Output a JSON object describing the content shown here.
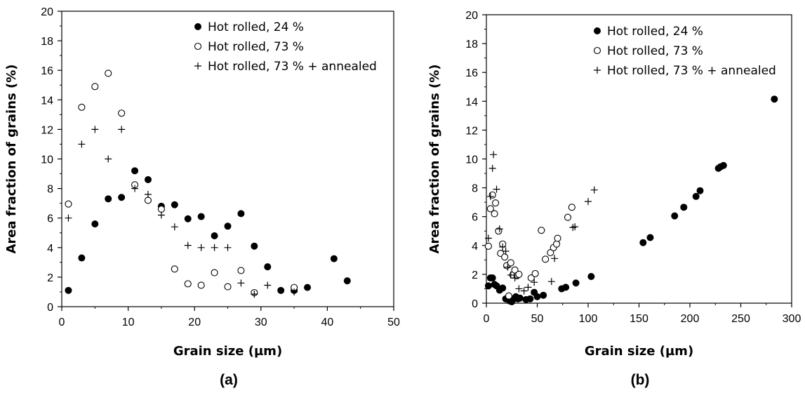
{
  "chart_data": [
    {
      "type": "scatter",
      "panel_label": "(a)",
      "xlabel": "Grain size (µm)",
      "ylabel": "Area fraction of grains  (%)",
      "xlim": [
        0,
        50
      ],
      "ylim": [
        0,
        20
      ],
      "x_ticks": [
        0,
        10,
        20,
        30,
        40,
        50
      ],
      "y_ticks": [
        0,
        2,
        4,
        6,
        8,
        10,
        12,
        14,
        16,
        18,
        20
      ],
      "grid": false,
      "legend_position": "top-right",
      "series": [
        {
          "name": "Hot rolled, 24 %",
          "marker": "filled-circle",
          "x": [
            1,
            3,
            5,
            7,
            9,
            11,
            13,
            15,
            17,
            19,
            21,
            23,
            25,
            27,
            29,
            31,
            33,
            35,
            37,
            41,
            43
          ],
          "y": [
            1.1,
            3.3,
            5.6,
            7.3,
            7.4,
            9.2,
            8.6,
            6.8,
            6.9,
            5.95,
            6.1,
            4.8,
            5.45,
            6.3,
            4.1,
            2.7,
            1.1,
            1.1,
            1.3,
            3.25,
            1.75
          ]
        },
        {
          "name": "Hot rolled, 73 %",
          "marker": "open-circle",
          "x": [
            1,
            3,
            5,
            7,
            9,
            11,
            13,
            15,
            17,
            19,
            21,
            23,
            25,
            27,
            29,
            35
          ],
          "y": [
            6.95,
            13.5,
            14.9,
            15.8,
            13.1,
            8.25,
            7.2,
            6.6,
            2.55,
            1.55,
            1.45,
            2.3,
            1.35,
            2.45,
            0.95,
            1.3
          ]
        },
        {
          "name": "Hot rolled, 73 % + annealed",
          "marker": "plus",
          "x": [
            1,
            3,
            5,
            7,
            9,
            11,
            13,
            15,
            17,
            19,
            21,
            23,
            25,
            27,
            29,
            31,
            35
          ],
          "y": [
            6.0,
            11.0,
            12.0,
            10.0,
            12.0,
            8.0,
            7.6,
            6.2,
            5.4,
            4.15,
            4.0,
            4.0,
            4.0,
            1.6,
            0.85,
            1.45,
            1.0
          ]
        }
      ]
    },
    {
      "type": "scatter",
      "panel_label": "(b)",
      "xlabel": "Grain size (µm)",
      "ylabel": "Area fraction of grains (%)",
      "xlim": [
        0,
        300
      ],
      "ylim": [
        0,
        20
      ],
      "x_ticks": [
        0,
        50,
        100,
        150,
        200,
        250,
        300
      ],
      "y_ticks": [
        0,
        2,
        4,
        6,
        8,
        10,
        12,
        14,
        16,
        18,
        20
      ],
      "grid": false,
      "legend_position": "top-right",
      "series": [
        {
          "name": "Hot rolled, 24 %",
          "marker": "filled-circle",
          "x": [
            2,
            4,
            6,
            8,
            10,
            13,
            16,
            19,
            21,
            23,
            25,
            27,
            29,
            31,
            33,
            39,
            43,
            47,
            50,
            56,
            74,
            78,
            88,
            103,
            154,
            161,
            185,
            194,
            206,
            210,
            228,
            230,
            233,
            283
          ],
          "y": [
            1.2,
            1.75,
            1.75,
            1.3,
            1.2,
            0.9,
            1.05,
            0.3,
            0.3,
            0.15,
            0.1,
            0.3,
            0.45,
            0.3,
            0.35,
            0.25,
            0.3,
            0.75,
            0.45,
            0.55,
            1.0,
            1.1,
            1.4,
            1.85,
            4.2,
            4.55,
            6.05,
            6.65,
            7.4,
            7.8,
            9.35,
            9.45,
            9.55,
            14.15
          ]
        },
        {
          "name": "Hot rolled, 73 %",
          "marker": "open-circle",
          "x": [
            2,
            4,
            6,
            8,
            9,
            12,
            14,
            16,
            18,
            20,
            22,
            24,
            26,
            28,
            30,
            32,
            44,
            48,
            54,
            58,
            63,
            66,
            69,
            70,
            80,
            84
          ],
          "y": [
            3.95,
            6.55,
            7.5,
            6.2,
            6.95,
            5.0,
            3.45,
            4.1,
            3.2,
            2.6,
            0.5,
            2.8,
            1.95,
            2.3,
            1.9,
            2.0,
            1.75,
            2.05,
            5.05,
            3.05,
            3.5,
            3.85,
            4.1,
            4.5,
            5.95,
            6.65
          ]
        },
        {
          "name": "Hot rolled, 73 % + annealed",
          "marker": "plus",
          "x": [
            2,
            4,
            6,
            7,
            10,
            13,
            16,
            19,
            21,
            24,
            28,
            32,
            37,
            41,
            47,
            64,
            67,
            85,
            87,
            100,
            106
          ],
          "y": [
            4.5,
            7.4,
            9.35,
            10.3,
            7.9,
            5.15,
            3.9,
            3.6,
            2.5,
            1.95,
            1.75,
            1.0,
            0.85,
            1.1,
            1.45,
            1.5,
            3.1,
            5.25,
            5.3,
            7.05,
            7.85
          ]
        }
      ]
    }
  ]
}
